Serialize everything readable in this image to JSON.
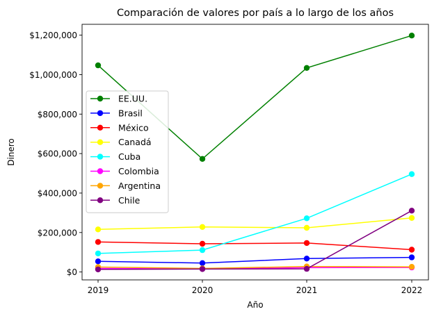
{
  "chart_data": {
    "type": "line",
    "title": "Comparación de valores por país a lo largo de los años",
    "xlabel": "Año",
    "ylabel": "Dinero",
    "x": [
      "2019",
      "2020",
      "2021",
      "2022"
    ],
    "y_ticks": [
      0,
      200000,
      400000,
      600000,
      800000,
      1000000,
      1200000
    ],
    "y_tick_labels": [
      "$0",
      "$200,000",
      "$400,000",
      "$600,000",
      "$800,000",
      "$1,000,000",
      "$1,200,000"
    ],
    "ylim": [
      -40000,
      1255000
    ],
    "grid": false,
    "legend_position": "center-left",
    "series": [
      {
        "name": "EE.UU.",
        "color": "#008000",
        "values": [
          1047000,
          573000,
          1034000,
          1198000
        ]
      },
      {
        "name": "Brasil",
        "color": "#0000ff",
        "values": [
          54000,
          45000,
          68000,
          74000
        ]
      },
      {
        "name": "México",
        "color": "#ff0000",
        "values": [
          152000,
          143000,
          147000,
          113000
        ]
      },
      {
        "name": "Canadá",
        "color": "#ffff00",
        "values": [
          216000,
          228000,
          224000,
          274000
        ]
      },
      {
        "name": "Cuba",
        "color": "#00ffff",
        "values": [
          94000,
          111000,
          272000,
          496000
        ]
      },
      {
        "name": "Colombia",
        "color": "#ff00ff",
        "values": [
          18000,
          16000,
          22000,
          23000
        ]
      },
      {
        "name": "Argentina",
        "color": "#ffa500",
        "values": [
          25000,
          18000,
          28000,
          26000
        ]
      },
      {
        "name": "Chile",
        "color": "#800080",
        "values": [
          13000,
          15000,
          16000,
          311000
        ]
      }
    ]
  }
}
